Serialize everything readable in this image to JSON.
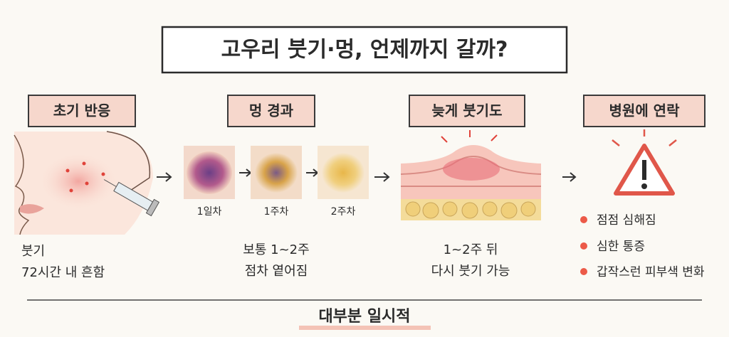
{
  "title": "고우리 붓기·멍, 언제까지 갈까?",
  "sections": [
    {
      "heading": "초기 반응",
      "lines": [
        "붓기",
        "72시간 내 흔함"
      ]
    },
    {
      "heading": "멍 경과",
      "stages": [
        "1일차",
        "1주차",
        "2주차"
      ],
      "lines": [
        "보통 1~2주",
        "점차 옅어짐"
      ]
    },
    {
      "heading": "늦게 붓기도",
      "lines": [
        "1~2주 뒤",
        "다시 붓기 가능"
      ]
    },
    {
      "heading": "병원에 연락",
      "bullets": [
        "점점 심해짐",
        "심한 통증",
        "갑작스런 피부색 변화"
      ]
    }
  ],
  "footer": "대부분 일시적"
}
